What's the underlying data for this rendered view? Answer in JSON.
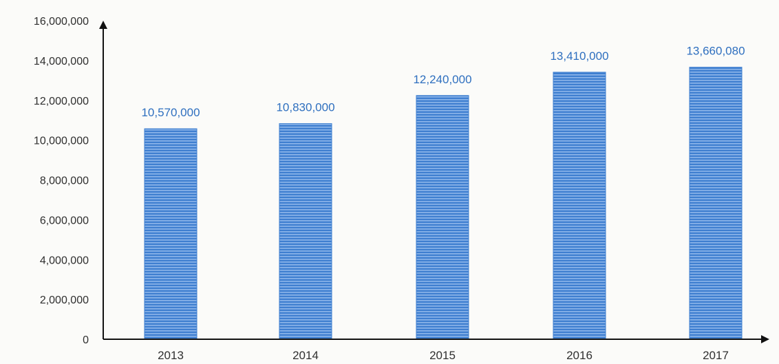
{
  "chart_data": {
    "type": "bar",
    "categories": [
      "2013",
      "2014",
      "2015",
      "2016",
      "2017"
    ],
    "values": [
      10570000,
      10830000,
      12240000,
      13410000,
      13660080
    ],
    "data_labels": [
      "10,570,000",
      "10,830,000",
      "12,240,000",
      "13,410,000",
      "13,660,080"
    ],
    "y_ticks": [
      0,
      2000000,
      4000000,
      6000000,
      8000000,
      10000000,
      12000000,
      14000000,
      16000000
    ],
    "y_tick_labels": [
      "0",
      "2,000,000",
      "4,000,000",
      "6,000,000",
      "8,000,000",
      "10,000,000",
      "12,000,000",
      "14,000,000",
      "16,000,000"
    ],
    "ylim": [
      0,
      16000000
    ],
    "title": "",
    "xlabel": "",
    "ylabel": "",
    "grid": false,
    "legend": "none",
    "bar_color": "#3f7fd0",
    "label_color": "#2e6fbf",
    "axis_color": "#111111"
  }
}
